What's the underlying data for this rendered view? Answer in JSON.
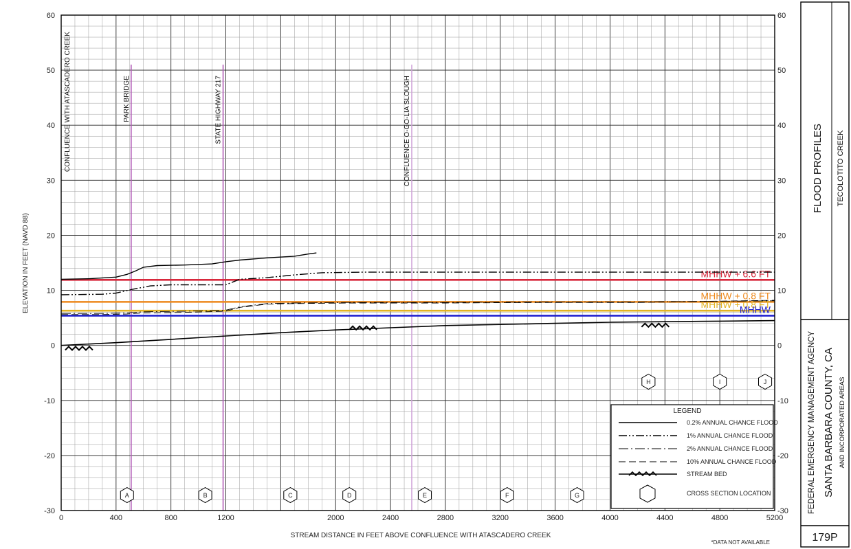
{
  "chart_data": {
    "type": "line",
    "xlabel": "STREAM DISTANCE IN FEET ABOVE CONFLUENCE WITH ATASCADERO CREEK",
    "ylabel": "ELEVATION IN FEET (NAVD 88)",
    "xlim": [
      0,
      5200
    ],
    "ylim": [
      -30,
      60
    ],
    "x_ticks": [
      0,
      400,
      800,
      1200,
      2000,
      2400,
      2800,
      3200,
      3600,
      4000,
      4400,
      4800,
      5200
    ],
    "y_ticks": [
      -30,
      -20,
      -10,
      0,
      10,
      20,
      30,
      40,
      50,
      60
    ],
    "grid": true,
    "series": [
      {
        "name": "0.2% ANNUAL CHANCE FLOOD",
        "style": "solid",
        "x": [
          0,
          200,
          400,
          480,
          540,
          600,
          700,
          900,
          1100,
          1200,
          1300,
          1500,
          1700,
          1800,
          1860
        ],
        "y": [
          12,
          12.1,
          12.4,
          12.9,
          13.5,
          14.2,
          14.5,
          14.6,
          14.8,
          15.2,
          15.5,
          15.9,
          16.2,
          16.6,
          16.8
        ]
      },
      {
        "name": "1% ANNUAL CHANCE FLOOD",
        "style": "dashdotdot",
        "x": [
          0,
          300,
          400,
          520,
          650,
          800,
          1000,
          1200,
          1300,
          1500,
          1700,
          1900,
          2200,
          2800,
          3500,
          4200,
          5000,
          5200
        ],
        "y": [
          9.2,
          9.3,
          9.5,
          10.2,
          10.8,
          11.0,
          11.0,
          11.0,
          12.0,
          12.3,
          12.8,
          13.2,
          13.3,
          13.3,
          13.3,
          13.3,
          13.3,
          13.3
        ]
      },
      {
        "name": "2% ANNUAL CHANCE FLOOD",
        "style": "dashdot",
        "x": [
          0,
          300,
          480,
          600,
          900,
          1200,
          1300,
          1500,
          1700,
          2100,
          2800,
          3500,
          4200,
          5200
        ],
        "y": [
          5.8,
          5.8,
          5.9,
          6.1,
          6.2,
          6.4,
          7.0,
          7.6,
          7.7,
          7.8,
          7.8,
          7.9,
          7.9,
          8.1
        ]
      },
      {
        "name": "10% ANNUAL CHANCE FLOOD",
        "style": "dashed",
        "x": [
          0,
          300,
          480,
          600,
          900,
          1200,
          1300,
          1500,
          1700,
          2100,
          2800,
          3500,
          4200,
          5200
        ],
        "y": [
          5.6,
          5.6,
          5.7,
          5.9,
          6.0,
          6.2,
          6.9,
          7.5,
          7.6,
          7.7,
          7.7,
          7.8,
          7.8,
          8.2
        ]
      },
      {
        "name": "STREAM BED",
        "style": "bed",
        "x": [
          0,
          400,
          800,
          1200,
          1600,
          2000,
          2400,
          2800,
          3200,
          3600,
          4000,
          4400,
          4800,
          5200
        ],
        "y": [
          0,
          0.5,
          1.1,
          1.7,
          2.3,
          2.8,
          3.2,
          3.6,
          3.8,
          4.0,
          4.2,
          4.3,
          4.4,
          4.5
        ]
      }
    ],
    "bed_markers": [
      {
        "x": 130,
        "y": -0.6
      },
      {
        "x": 2200,
        "y": 3.1
      },
      {
        "x": 4330,
        "y": 3.6
      }
    ],
    "reference_lines": [
      {
        "label": "MHHW + 6.6 FT",
        "y": 11.9,
        "color": "#d8283c"
      },
      {
        "label": "MHHW + 0.8 FT",
        "y": 7.9,
        "color": "#ee8a1e"
      },
      {
        "label": "MHHW + 0.8 FT",
        "y": 6.3,
        "color": "#e2b323"
      },
      {
        "label": "MHHW",
        "y": 5.4,
        "color": "#2020d0"
      }
    ],
    "locations": [
      {
        "label": "CONFLUENCE WITH ATASCADERO CREEK",
        "x": 0,
        "color": "#000000"
      },
      {
        "label": "PARK BRIDGE",
        "x": 510,
        "color": "#b25bb7"
      },
      {
        "label": "STATE HIGHWAY 217",
        "x": 1180,
        "color": "#b25bb7"
      },
      {
        "label": "CONFLUENCE O-GO-LIA SLOUGH",
        "x": 2555,
        "color": "#cfa3d9"
      }
    ],
    "cross_sections": [
      {
        "label": "A",
        "x": 480,
        "y": -27.2
      },
      {
        "label": "B",
        "x": 1050,
        "y": -27.2
      },
      {
        "label": "C",
        "x": 1670,
        "y": -27.2
      },
      {
        "label": "D",
        "x": 2100,
        "y": -27.2
      },
      {
        "label": "E",
        "x": 2650,
        "y": -27.2
      },
      {
        "label": "F",
        "x": 3250,
        "y": -27.2
      },
      {
        "label": "G",
        "x": 3760,
        "y": -27.2
      },
      {
        "label": "H",
        "x": 4280,
        "y": -6.6
      },
      {
        "label": "I",
        "x": 4800,
        "y": -6.6
      },
      {
        "label": "J",
        "x": 5130,
        "y": -6.6
      }
    ],
    "legend": {
      "title": "LEGEND",
      "position": "bottom-right",
      "items": [
        "0.2% ANNUAL CHANCE FLOOD",
        "1% ANNUAL CHANCE FLOOD",
        "2% ANNUAL CHANCE FLOOD",
        "10% ANNUAL CHANCE FLOOD",
        "STREAM BED",
        "CROSS SECTION LOCATION"
      ]
    }
  },
  "title_block": {
    "profile_title": "FLOOD PROFILES",
    "stream_name": "TECOLOTITO CREEK",
    "agency": "FEDERAL EMERGENCY MANAGEMENT AGENCY",
    "county": "SANTA BARBARA COUNTY, CA",
    "areas": "AND INCORPORATED AREAS",
    "panel": "179P"
  },
  "footnote": "*DATA NOT AVAILABLE"
}
